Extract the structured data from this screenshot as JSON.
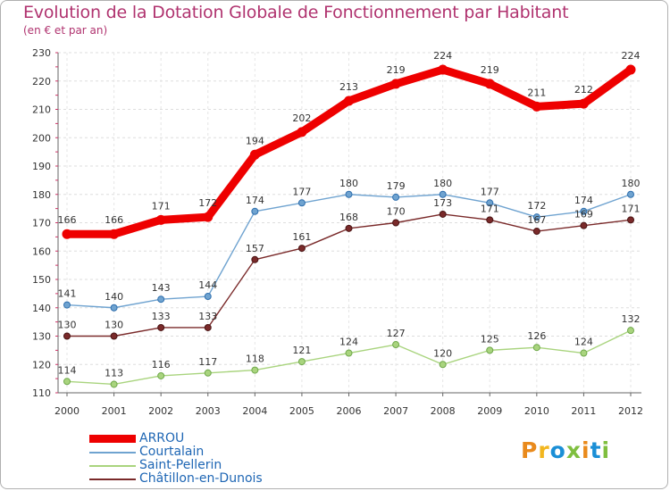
{
  "header": {
    "title": "Evolution de la Dotation Globale de Fonctionnement par Habitant",
    "subtitle": "(en € et par an)"
  },
  "logo": {
    "text": "Proxiti",
    "colors": [
      "#e98a1c",
      "#f2b61f",
      "#1b8fd6",
      "#7fbf3f",
      "#e98a1c",
      "#1b8fd6",
      "#7fbf3f"
    ]
  },
  "chart_data": {
    "type": "line",
    "title": "Evolution de la Dotation Globale de Fonctionnement par Habitant",
    "subtitle": "(en € et par an)",
    "xlabel": "",
    "ylabel": "",
    "x": [
      "2000",
      "2001",
      "2002",
      "2003",
      "2004",
      "2005",
      "2006",
      "2007",
      "2008",
      "2009",
      "2010",
      "2011",
      "2012"
    ],
    "ylim": [
      110,
      230
    ],
    "yticks": [
      110,
      120,
      130,
      140,
      150,
      160,
      170,
      180,
      190,
      200,
      210,
      220,
      230
    ],
    "grid": true,
    "legend": "bottom-left",
    "series": [
      {
        "name": "ARROU",
        "color": "#ee0000",
        "values": [
          166,
          166,
          171,
          172,
          194,
          202,
          213,
          219,
          224,
          219,
          211,
          212,
          224
        ]
      },
      {
        "name": "Courtalain",
        "color": "#6fa3d0",
        "values": [
          141,
          140,
          143,
          144,
          174,
          177,
          180,
          179,
          180,
          177,
          172,
          174,
          180
        ]
      },
      {
        "name": "Saint-Pellerin",
        "color": "#a9d47e",
        "values": [
          114,
          113,
          116,
          117,
          118,
          121,
          124,
          127,
          120,
          125,
          126,
          124,
          132
        ]
      },
      {
        "name": "Châtillon-en-Dunois",
        "color": "#7a2a2a",
        "values": [
          130,
          130,
          133,
          133,
          157,
          161,
          168,
          170,
          173,
          171,
          167,
          169,
          171
        ]
      }
    ]
  }
}
